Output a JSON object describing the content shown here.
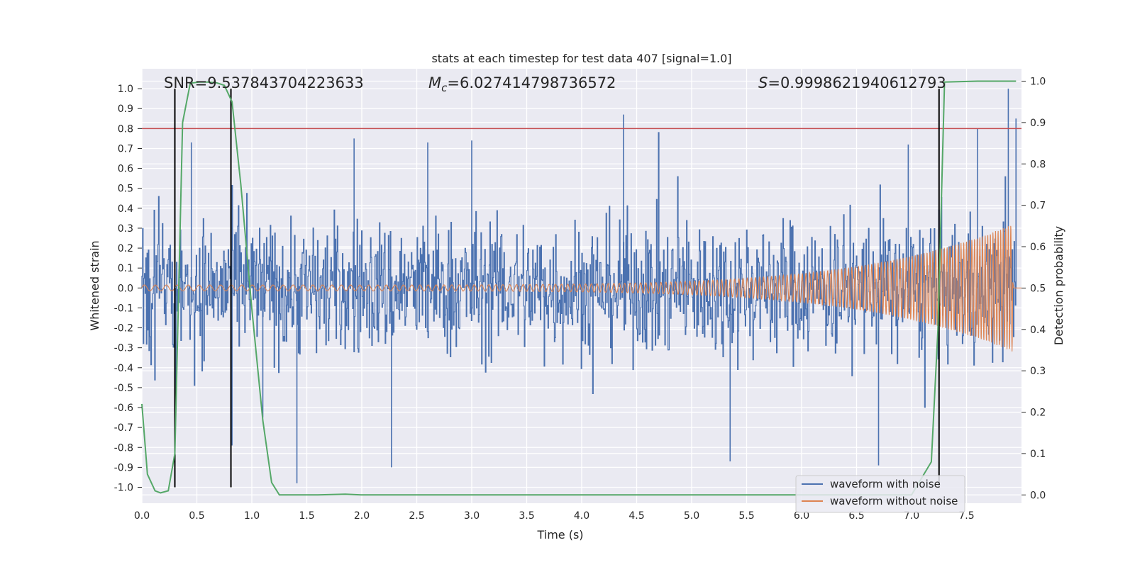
{
  "chart_data": {
    "type": "line",
    "title": "stats at each timestep for test data 407 [signal=1.0]",
    "xlabel": "Time (s)",
    "ylabel": "Whitened strain",
    "y2label": "Detection probability",
    "xlim": [
      0.0,
      8.0
    ],
    "ylim": [
      -1.08,
      1.1
    ],
    "y2lim": [
      -0.02,
      1.03
    ],
    "grid": true,
    "x_ticks": [
      0.0,
      0.5,
      1.0,
      1.5,
      2.0,
      2.5,
      3.0,
      3.5,
      4.0,
      4.5,
      5.0,
      5.5,
      6.0,
      6.5,
      7.0,
      7.5
    ],
    "x_tick_labels": [
      "0.0",
      "0.5",
      "1.0",
      "1.5",
      "2.0",
      "2.5",
      "3.0",
      "3.5",
      "4.0",
      "4.5",
      "5.0",
      "5.5",
      "6.0",
      "6.5",
      "7.0",
      "7.5"
    ],
    "y_ticks": [
      1.0,
      0.9,
      0.8,
      0.7,
      0.6,
      0.5,
      0.4,
      0.3,
      0.2,
      0.1,
      0.0,
      -0.1,
      -0.2,
      -0.3,
      -0.4,
      -0.5,
      -0.6,
      -0.7,
      -0.8,
      -0.9,
      -1.0
    ],
    "y_tick_labels": [
      "1.0",
      "0.9",
      "0.8",
      "0.7",
      "0.6",
      "0.5",
      "0.4",
      "0.3",
      "0.2",
      "0.1",
      "0.0",
      "-0.1",
      "-0.2",
      "-0.3",
      "-0.4",
      "-0.5",
      "-0.6",
      "-0.7",
      "-0.8",
      "-0.9",
      "-1.0"
    ],
    "y2_ticks": [
      1.0,
      0.9,
      0.8,
      0.7,
      0.6,
      0.5,
      0.4,
      0.3,
      0.2,
      0.1,
      0.0
    ],
    "y2_tick_labels": [
      "1.0",
      "0.9",
      "0.8",
      "0.7",
      "0.6",
      "0.5",
      "0.4",
      "0.3",
      "0.2",
      "0.1",
      "0.0"
    ],
    "annotations": {
      "snr": "SNR=9.537843704223633",
      "mc_symbol": "M",
      "mc_sub": "c",
      "mc_value": "=6.027414798736572",
      "s_symbol": "S",
      "s_value": "=0.9998621940612793"
    },
    "threshold": {
      "value": 0.8,
      "color": "#c44e52"
    },
    "vertical_markers": [
      0.3,
      0.81,
      7.25
    ],
    "marker_color": "#000000",
    "series": [
      {
        "name": "waveform with noise",
        "color": "#4c72b0",
        "envelope": {
          "x": [
            0.0,
            7.95
          ],
          "typical_amplitude": 0.4,
          "peak_amplitude": 1.0
        },
        "spikes": [
          [
            0.31,
            -0.61
          ],
          [
            0.45,
            0.73
          ],
          [
            0.82,
            -0.79
          ],
          [
            1.1,
            -0.65
          ],
          [
            1.41,
            -0.98
          ],
          [
            1.93,
            0.75
          ],
          [
            2.27,
            -0.9
          ],
          [
            2.6,
            0.73
          ],
          [
            3.0,
            0.74
          ],
          [
            4.38,
            0.87
          ],
          [
            5.35,
            -0.87
          ],
          [
            6.7,
            -0.89
          ],
          [
            6.97,
            0.72
          ],
          [
            7.6,
            0.8
          ],
          [
            7.88,
            1.0
          ],
          [
            7.95,
            0.85
          ]
        ]
      },
      {
        "name": "waveform without noise",
        "color": "#dd8452",
        "chirp": {
          "t_end": 7.92,
          "start_amplitude": 0.015,
          "end_amplitude": 0.32,
          "start_cycles_per_s": 10,
          "end_cycles_per_s": 44
        }
      },
      {
        "name": "detection probability",
        "axis": "right",
        "color": "#55a868",
        "x": [
          0.0,
          0.05,
          0.12,
          0.17,
          0.24,
          0.3,
          0.37,
          0.44,
          0.52,
          0.6,
          0.68,
          0.75,
          0.82,
          0.9,
          1.0,
          1.1,
          1.18,
          1.25,
          1.4,
          1.6,
          1.85,
          2.0,
          3.0,
          4.0,
          5.0,
          6.0,
          7.0,
          7.18,
          7.24,
          7.3,
          7.6,
          7.95
        ],
        "y": [
          0.22,
          0.05,
          0.01,
          0.005,
          0.01,
          0.1,
          0.9,
          0.995,
          0.998,
          0.998,
          0.996,
          0.99,
          0.95,
          0.75,
          0.45,
          0.18,
          0.03,
          0.0,
          0.0,
          0.0,
          0.002,
          0.0,
          0.0,
          0.0,
          0.0,
          0.0,
          0.0,
          0.08,
          0.4,
          0.998,
          1.0,
          1.0
        ]
      }
    ],
    "legend": {
      "placement": "lower-right",
      "entries": [
        "waveform with noise",
        "waveform without noise"
      ]
    },
    "colors": {
      "plot_bg": "#eaeaf2",
      "grid": "#ffffff",
      "text": "#262626"
    }
  }
}
